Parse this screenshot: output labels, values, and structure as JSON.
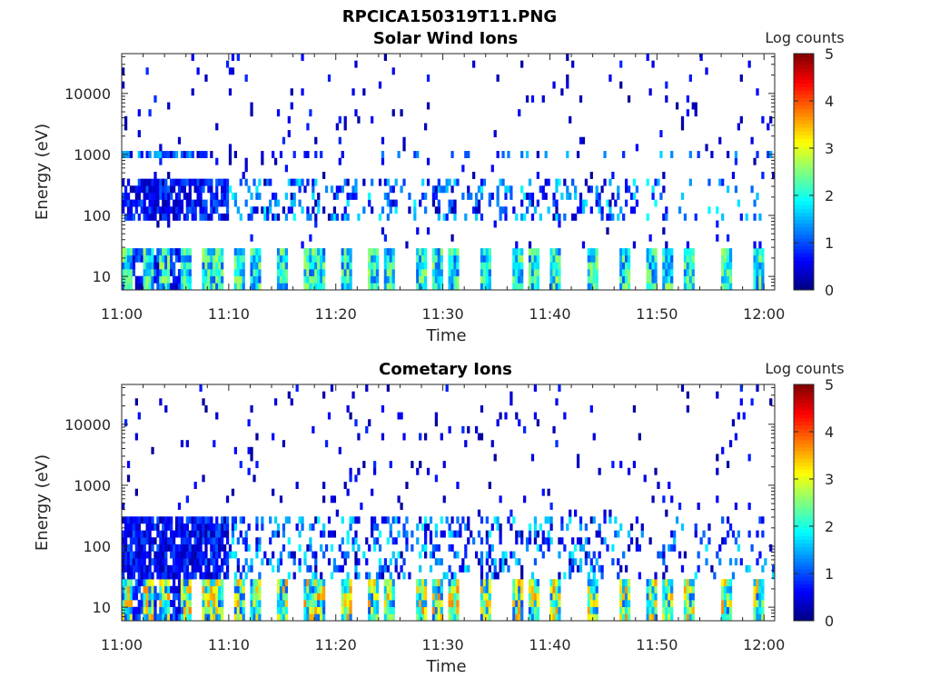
{
  "figure": {
    "title": "RPCICA150319T11.PNG"
  },
  "chart_data": [
    {
      "type": "heatmap",
      "title": "Solar Wind Ions",
      "xlabel": "Time",
      "ylabel": "Energy (eV)",
      "x_ticks": [
        "11:00",
        "11:10",
        "11:20",
        "11:30",
        "11:40",
        "11:50",
        "12:00"
      ],
      "x_range_minutes": [
        0,
        61
      ],
      "y_ticks": [
        "10",
        "100",
        "1000",
        "10000"
      ],
      "y_scale": "log",
      "y_range": [
        6,
        45000
      ],
      "colorbar": {
        "label": "Log counts",
        "ticks": [
          "0",
          "1",
          "2",
          "3",
          "4",
          "5"
        ],
        "range": [
          0,
          5
        ],
        "colormap": "jet"
      },
      "features": {
        "low_energy_band_ev": [
          6,
          30
        ],
        "periodic_pulse_minutes": [
          0.5,
          2.5,
          4,
          6,
          8,
          9,
          11,
          12.5,
          15,
          17.5,
          18.5,
          21,
          23.5,
          25,
          28,
          29.5,
          31,
          34,
          37,
          38.5,
          40.5,
          44,
          47,
          49.5,
          51,
          53,
          56.5,
          59.5
        ],
        "hot_band_ev": [
          80,
          400
        ],
        "solar_wind_band_ev": [
          850,
          1200
        ]
      }
    },
    {
      "type": "heatmap",
      "title": "Cometary Ions",
      "xlabel": "Time",
      "ylabel": "Energy (eV)",
      "x_ticks": [
        "11:00",
        "11:10",
        "11:20",
        "11:30",
        "11:40",
        "11:50",
        "12:00"
      ],
      "x_range_minutes": [
        0,
        61
      ],
      "y_ticks": [
        "10",
        "100",
        "1000",
        "10000"
      ],
      "y_scale": "log",
      "y_range": [
        6,
        45000
      ],
      "colorbar": {
        "label": "Log counts",
        "ticks": [
          "0",
          "1",
          "2",
          "3",
          "4",
          "5"
        ],
        "range": [
          0,
          5
        ],
        "colormap": "jet"
      },
      "features": {
        "low_energy_band_ev": [
          6,
          30
        ],
        "periodic_pulse_minutes": [
          0.5,
          2.5,
          4,
          6,
          8,
          9,
          11,
          12.5,
          15,
          17.5,
          18.5,
          21,
          23.5,
          25,
          28,
          29.5,
          31,
          34,
          37,
          38.5,
          40.5,
          44,
          47,
          49.5,
          51,
          53,
          56.5,
          59.5
        ],
        "hot_band_ev": [
          30,
          330
        ]
      }
    }
  ]
}
